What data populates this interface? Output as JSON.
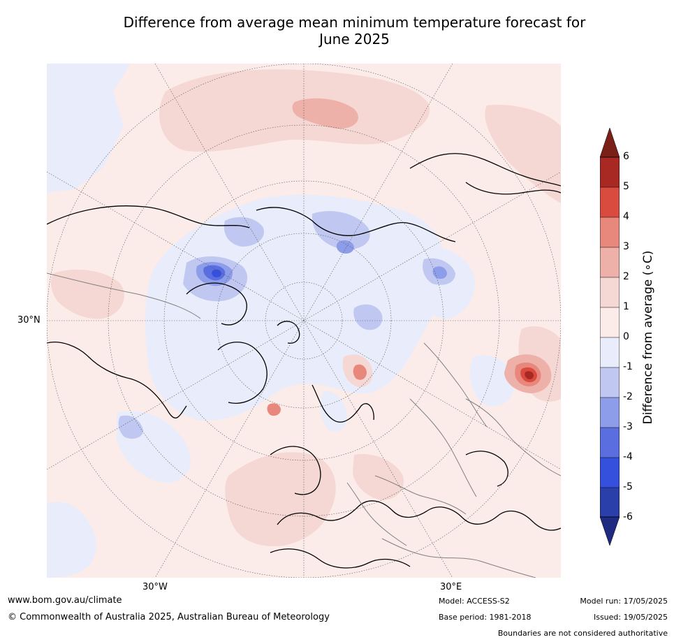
{
  "title": {
    "line1": "Difference from average mean minimum temperature forecast for",
    "line2": "June 2025"
  },
  "map": {
    "labels": {
      "lat_30n": "30°N",
      "lon_30w": "30°W",
      "lon_30e": "30°E"
    },
    "projection": "north-polar-stereographic",
    "colors": {
      "land_border": "#000000",
      "country_border": "#808080",
      "grid": "#555555"
    }
  },
  "colorbar": {
    "title": "Difference from average (∘C)",
    "ticks": [
      "6",
      "5",
      "4",
      "3",
      "2",
      "1",
      "0",
      "-1",
      "-2",
      "-3",
      "-4",
      "-5",
      "-6"
    ],
    "colors": {
      "above_6": "#7a2018",
      "5_6": "#a82823",
      "4_5": "#d84b3e",
      "3_4": "#e8877c",
      "2_3": "#eeb1aa",
      "1_2": "#f5d8d4",
      "0_1": "#fbecea",
      "-1_0": "#e9ecfa",
      "-2_-1": "#c0c8f2",
      "-3_-2": "#8e9de9",
      "-4_-3": "#5b6ee0",
      "-5_-4": "#3450dc",
      "-6_-5": "#2b3fab",
      "below_-6": "#1e2b80"
    }
  },
  "footer": {
    "website": "www.bom.gov.au/climate",
    "copyright": "© Commonwealth of Australia 2025, Australian Bureau of Meteorology",
    "model": "Model: ACCESS-S2",
    "base_period": "Base period: 1981-2018",
    "model_run": "Model run: 17/05/2025",
    "issued": "Issued: 19/05/2025",
    "disclaimer": "Boundaries are not considered authoritative"
  }
}
